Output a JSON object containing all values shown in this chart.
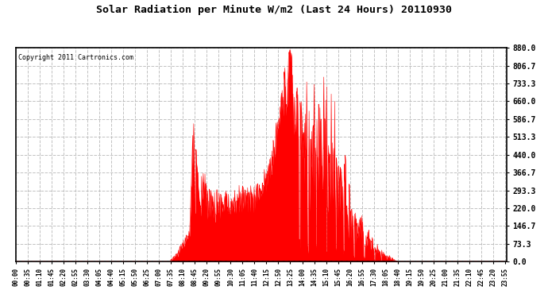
{
  "title": "Solar Radiation per Minute W/m2 (Last 24 Hours) 20110930",
  "copyright": "Copyright 2011 Cartronics.com",
  "fill_color": "#FF0000",
  "line_color": "#FF0000",
  "background_color": "#FFFFFF",
  "grid_color": "#BBBBBB",
  "ylim": [
    0.0,
    880.0
  ],
  "yticks": [
    0.0,
    73.3,
    146.7,
    220.0,
    293.3,
    366.7,
    440.0,
    513.3,
    586.7,
    660.0,
    733.3,
    806.7,
    880.0
  ],
  "total_minutes": 1440,
  "sunrise_minute": 455,
  "sunset_minute": 1120,
  "peak_minute": 805,
  "peak_value": 880.0
}
